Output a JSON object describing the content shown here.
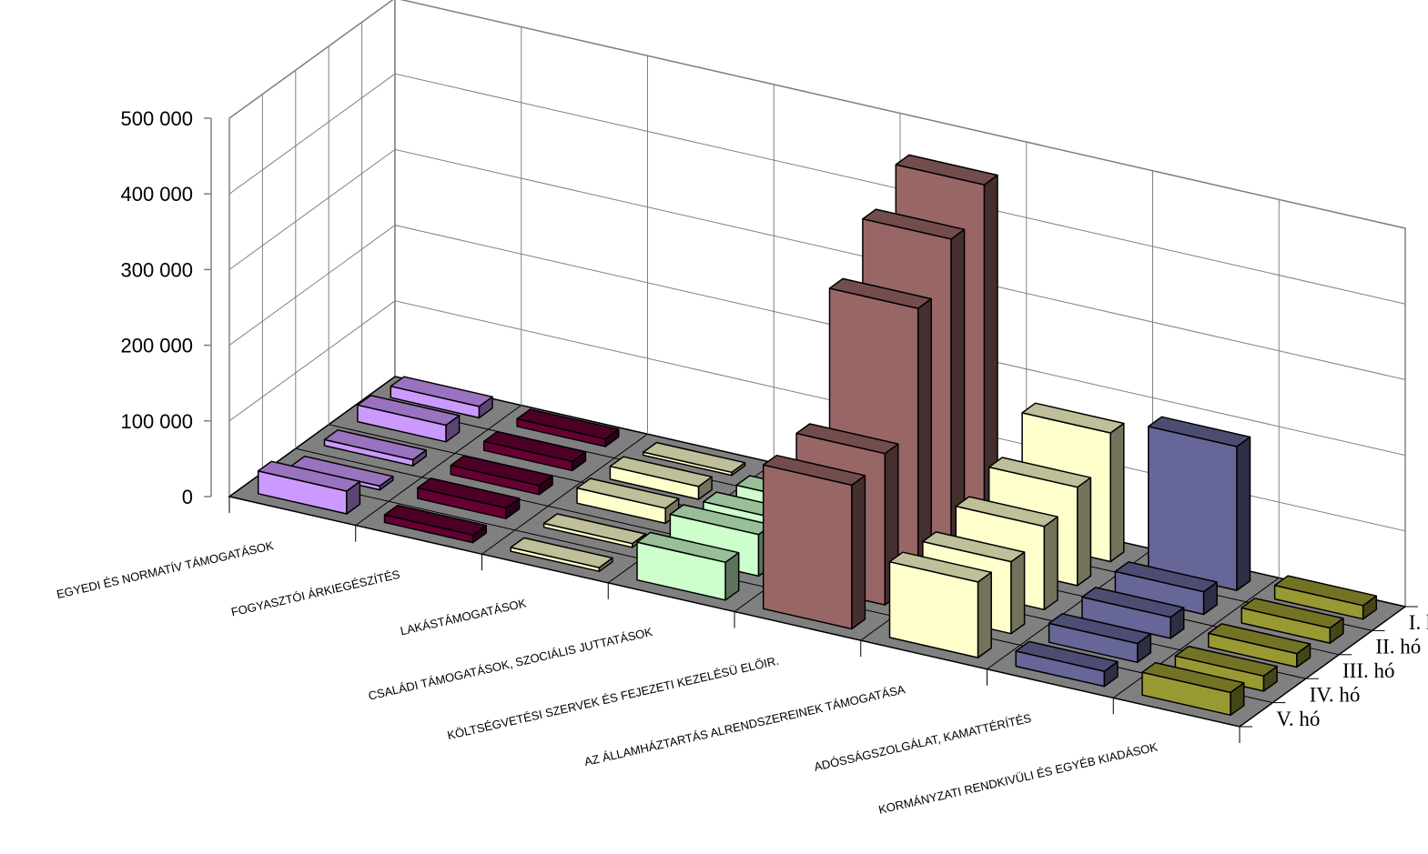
{
  "chart_data": {
    "type": "bar",
    "subtype": "3d-column",
    "title": "",
    "xlabel": "",
    "ylabel": "",
    "ylim": [
      0,
      500000
    ],
    "yticks": [
      "0",
      "100 000",
      "200 000",
      "300 000",
      "400 000",
      "500 000"
    ],
    "grid": true,
    "legend": "series labels on depth axis (right)",
    "categories": [
      "EGYEDI ÉS NORMATÍV TÁMOGATÁSOK",
      "FOGYASZTÓI ÁRKIEGÉSZÍTÉS",
      "LAKÁSTÁMOGATÁSOK",
      "CSALÁDI TÁMOGATÁSOK, SZOCIÁLIS JUTTATÁSOK",
      "KÖLTSÉGVETÉSI SZERVEK ÉS FEJEZETI KEZELÉSÜ ELŐIR.",
      "AZ ÁLLAMHÁZTARTÁS ALRENDSZEREINEK TÁMOGATÁSA",
      "ADÓSSÁGSZOLGÁLAT, KAMATTÉRÍTÉS",
      "KORMÁNYZATI RENDKIVÜLI ÉS EGYÉB KIADÁSOK"
    ],
    "series": [
      {
        "name": "I. hó",
        "values": [
          15000,
          10000,
          4000,
          15000,
          460000,
          170000,
          190000,
          18000
        ]
      },
      {
        "name": "II. hó",
        "values": [
          22000,
          12000,
          17000,
          30000,
          420000,
          130000,
          30000,
          20000
        ]
      },
      {
        "name": "III. hó",
        "values": [
          8000,
          12000,
          20000,
          40000,
          360000,
          110000,
          28000,
          18000
        ]
      },
      {
        "name": "IV. hó",
        "values": [
          5000,
          14000,
          5000,
          55000,
          200000,
          95000,
          25000,
          20000
        ]
      },
      {
        "name": "V. hó",
        "values": [
          30000,
          10000,
          5000,
          50000,
          190000,
          100000,
          20000,
          30000
        ]
      }
    ],
    "category_colors": [
      "#cc99ff",
      "#660033",
      "#ffffcc",
      "#ccffcc",
      "#996666",
      "#ffffcc",
      "#666699",
      "#999933"
    ]
  }
}
